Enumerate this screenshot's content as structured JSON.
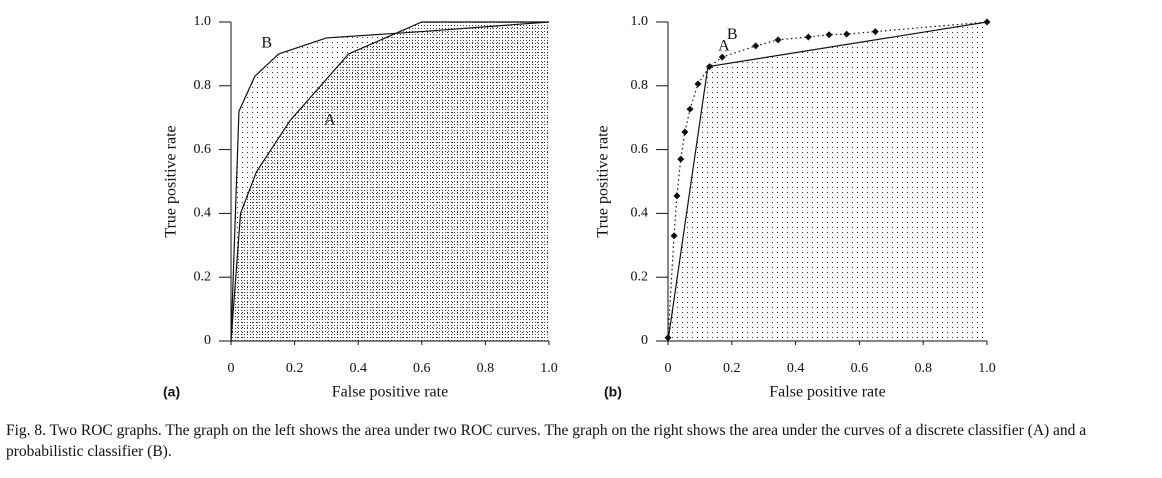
{
  "chart_data": [
    {
      "type": "line",
      "panel_label": "(a)",
      "xlabel": "False positive rate",
      "ylabel": "True positive rate",
      "xlim": [
        0,
        1
      ],
      "ylim": [
        0,
        1
      ],
      "xticks": [
        0,
        0.2,
        0.4,
        0.6,
        0.8,
        {
          "value": 1,
          "label": "1.0"
        }
      ],
      "yticks": [
        0,
        0.2,
        0.4,
        0.6,
        0.8,
        {
          "value": 1,
          "label": "1.0"
        }
      ],
      "series": [
        {
          "name": "B",
          "color": "#111111",
          "style": "solid",
          "markers": false,
          "fill": "sparse",
          "x": [
            0,
            0.025,
            0.075,
            0.15,
            0.3,
            0.6,
            1.0
          ],
          "values": [
            0,
            0.72,
            0.83,
            0.9,
            0.95,
            0.97,
            1.0
          ]
        },
        {
          "name": "A",
          "color": "#111111",
          "style": "solid",
          "markers": false,
          "fill": "dense",
          "x": [
            0,
            0.03,
            0.08,
            0.185,
            0.37,
            0.6,
            1.0
          ],
          "values": [
            0,
            0.4,
            0.53,
            0.69,
            0.9,
            1.0,
            1.0
          ]
        }
      ]
    },
    {
      "type": "line",
      "panel_label": "(b)",
      "xlabel": "False positive rate",
      "ylabel": "True positive rate",
      "xlim": [
        0,
        1
      ],
      "ylim": [
        0,
        1
      ],
      "xticks": [
        0,
        0.2,
        0.4,
        0.6,
        0.8,
        {
          "value": 1,
          "label": "1.0"
        }
      ],
      "yticks": [
        0,
        0.2,
        0.4,
        0.6,
        0.8,
        {
          "value": 1,
          "label": "1.0"
        }
      ],
      "series": [
        {
          "name": "B",
          "color": "#111111",
          "style": "dotted",
          "markers": true,
          "fill": "none",
          "x": [
            0,
            0.019,
            0.028,
            0.04,
            0.053,
            0.069,
            0.094,
            0.13,
            0.17,
            0.275,
            0.345,
            0.44,
            0.505,
            0.56,
            0.65,
            1.0
          ],
          "values": [
            0.01,
            0.33,
            0.455,
            0.57,
            0.655,
            0.727,
            0.806,
            0.86,
            0.89,
            0.925,
            0.944,
            0.953,
            0.96,
            0.962,
            0.97,
            1.0
          ]
        },
        {
          "name": "A",
          "color": "#111111",
          "style": "solid",
          "markers": false,
          "fill": "sparse",
          "x": [
            0,
            0.125,
            1.0
          ],
          "values": [
            0,
            0.86,
            1.0
          ]
        }
      ]
    }
  ],
  "caption": "Fig. 8. Two ROC graphs. The graph on the left shows the area under two ROC curves. The graph on the right shows the area under the curves of a discrete classifier (A) and a probabilistic classifier (B)."
}
